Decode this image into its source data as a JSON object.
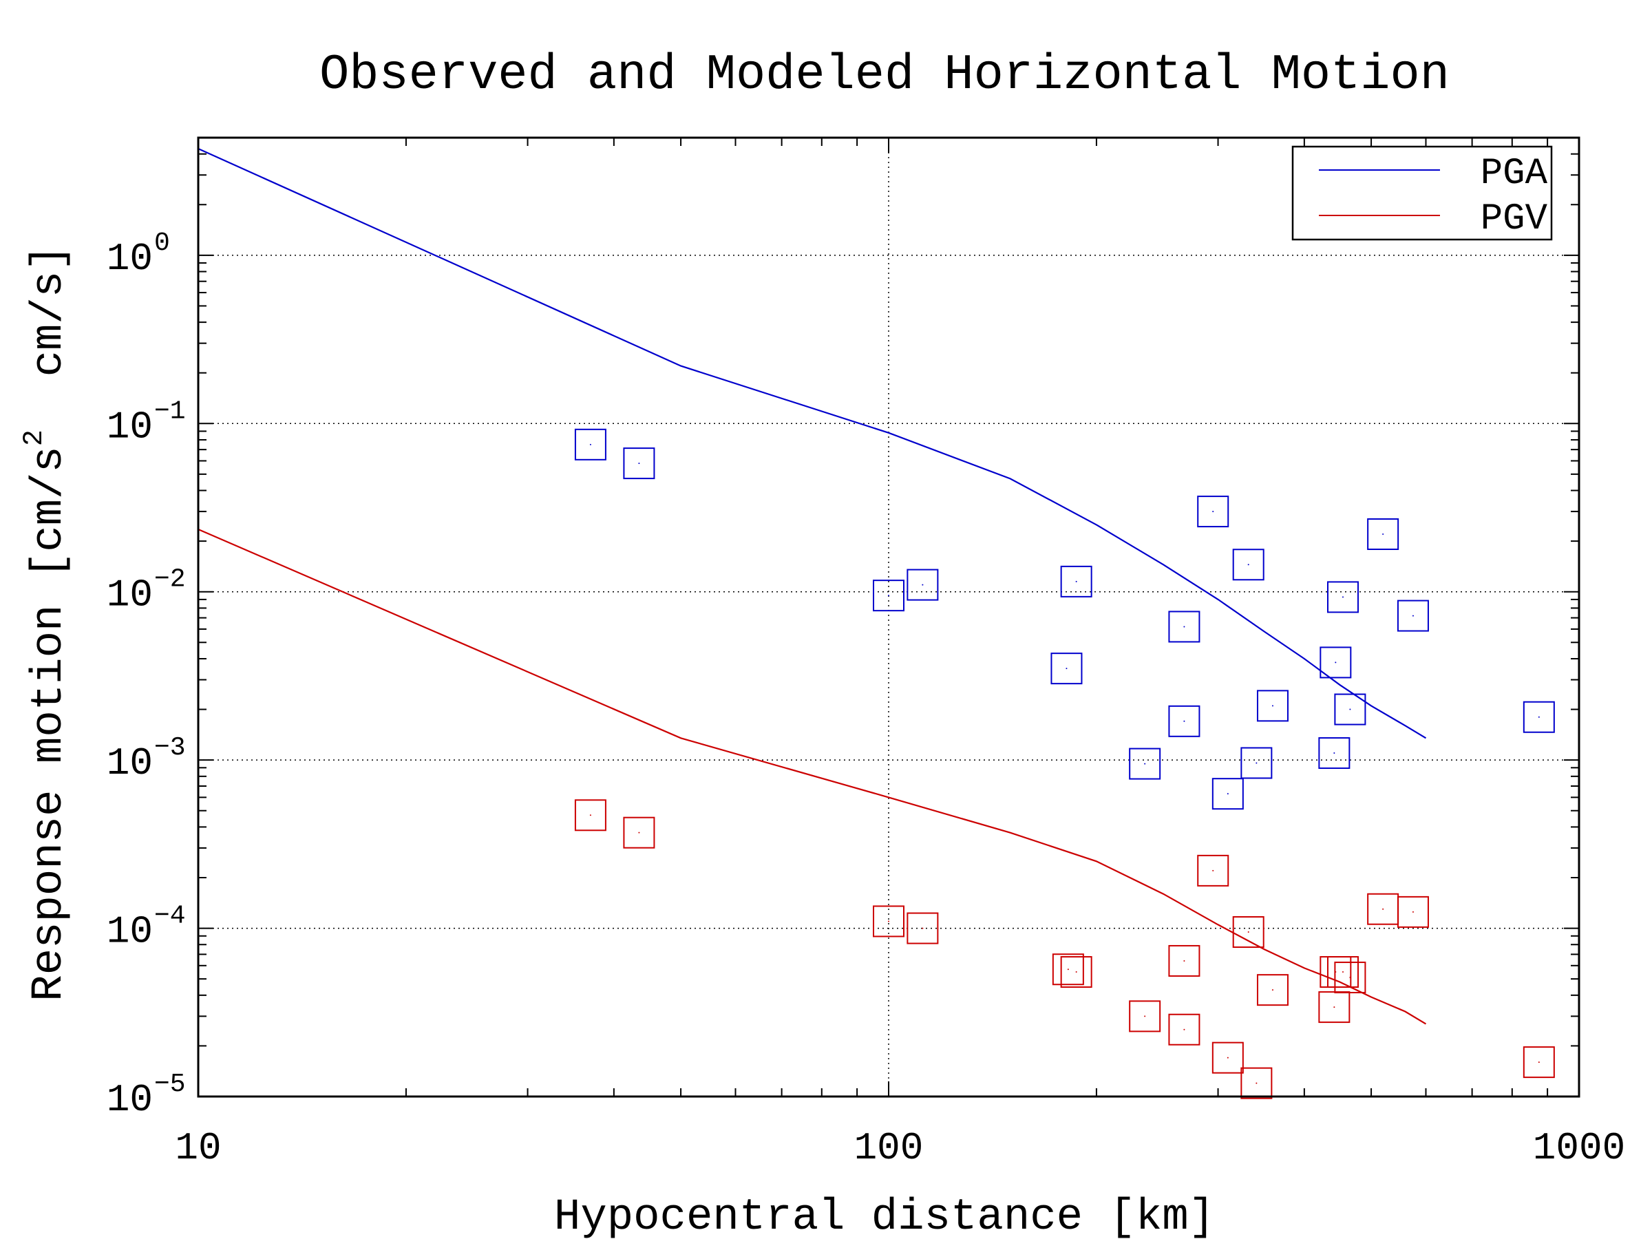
{
  "chart_data": {
    "type": "scatter",
    "title": "Observed and Modeled Horizontal Motion",
    "xlabel": "Hypocentral distance [km]",
    "ylabel_parts": [
      "Response motion [cm/s",
      "2",
      "  cm/s]"
    ],
    "x_scale": "log",
    "y_scale": "log",
    "xlim": [
      10,
      1000
    ],
    "ylim": [
      1e-05,
      5
    ],
    "x_ticks": [
      {
        "value": 10,
        "label": "10"
      },
      {
        "value": 100,
        "label": "100"
      },
      {
        "value": 1000,
        "label": "1000"
      }
    ],
    "y_ticks": [
      {
        "value": 1e-05,
        "base": "10",
        "exp": "−5"
      },
      {
        "value": 0.0001,
        "base": "10",
        "exp": "−4"
      },
      {
        "value": 0.001,
        "base": "10",
        "exp": "−3"
      },
      {
        "value": 0.01,
        "base": "10",
        "exp": "−2"
      },
      {
        "value": 0.1,
        "base": "10",
        "exp": "−1"
      },
      {
        "value": 1,
        "base": "10",
        "exp": "0"
      }
    ],
    "grid": "dotted, major decades",
    "legend_position": "top-right",
    "series": [
      {
        "name": "PGA",
        "color": "#0000cc",
        "line": [
          [
            10,
            4.3
          ],
          [
            50,
            0.22
          ],
          [
            100,
            0.088
          ],
          [
            150,
            0.047
          ],
          [
            200,
            0.025
          ],
          [
            250,
            0.0145
          ],
          [
            300,
            0.009
          ],
          [
            350,
            0.0058
          ],
          [
            400,
            0.004
          ],
          [
            450,
            0.0028
          ],
          [
            500,
            0.0021
          ],
          [
            560,
            0.0016
          ],
          [
            600,
            0.00135
          ]
        ],
        "points": [
          [
            37,
            0.075
          ],
          [
            43.5,
            0.058
          ],
          [
            100,
            0.0095
          ],
          [
            112,
            0.011
          ],
          [
            181,
            0.0035
          ],
          [
            187,
            0.0115
          ],
          [
            235,
            0.00095
          ],
          [
            268,
            0.0017
          ],
          [
            268,
            0.0062
          ],
          [
            295,
            0.03
          ],
          [
            310,
            0.00063
          ],
          [
            332,
            0.0145
          ],
          [
            341,
            0.00096
          ],
          [
            360,
            0.0021
          ],
          [
            442,
            0.0011
          ],
          [
            444,
            0.0038
          ],
          [
            455,
            0.0093
          ],
          [
            466,
            0.002
          ],
          [
            520,
            0.022
          ],
          [
            575,
            0.0072
          ],
          [
            875,
            0.0018
          ]
        ]
      },
      {
        "name": "PGV",
        "color": "#cc0000",
        "line": [
          [
            10,
            0.0235
          ],
          [
            50,
            0.00135
          ],
          [
            100,
            0.0006
          ],
          [
            150,
            0.00037
          ],
          [
            200,
            0.00025
          ],
          [
            250,
            0.00016
          ],
          [
            300,
            0.000105
          ],
          [
            350,
            7.5e-05
          ],
          [
            400,
            5.8e-05
          ],
          [
            450,
            4.8e-05
          ],
          [
            500,
            3.9e-05
          ],
          [
            560,
            3.2e-05
          ],
          [
            600,
            2.7e-05
          ]
        ],
        "points": [
          [
            37,
            0.00047
          ],
          [
            43.5,
            0.00037
          ],
          [
            100,
            0.00011
          ],
          [
            112,
            0.0001
          ],
          [
            182,
            5.7e-05
          ],
          [
            187,
            5.5e-05
          ],
          [
            235,
            3e-05
          ],
          [
            268,
            2.5e-05
          ],
          [
            268,
            6.4e-05
          ],
          [
            295,
            0.00022
          ],
          [
            310,
            1.7e-05
          ],
          [
            332,
            9.5e-05
          ],
          [
            341,
            1.2e-05
          ],
          [
            360,
            4.3e-05
          ],
          [
            442,
            3.4e-05
          ],
          [
            444,
            5.5e-05
          ],
          [
            455,
            5.5e-05
          ],
          [
            466,
            5.1e-05
          ],
          [
            520,
            0.00013
          ],
          [
            575,
            0.000125
          ],
          [
            875,
            1.6e-05
          ]
        ]
      }
    ]
  }
}
